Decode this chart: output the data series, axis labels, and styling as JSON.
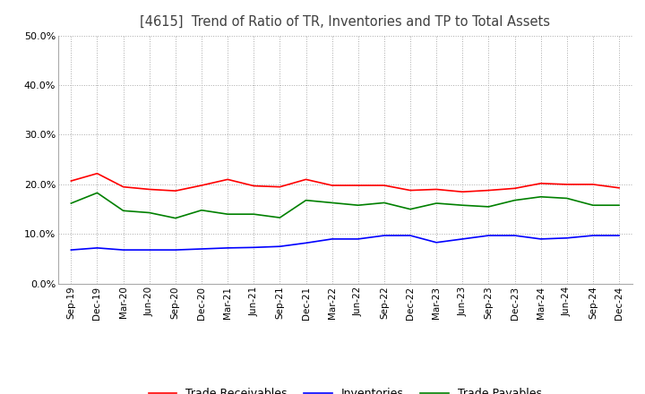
{
  "title": "[4615]  Trend of Ratio of TR, Inventories and TP to Total Assets",
  "x_labels": [
    "Sep-19",
    "Dec-19",
    "Mar-20",
    "Jun-20",
    "Sep-20",
    "Dec-20",
    "Mar-21",
    "Jun-21",
    "Sep-21",
    "Dec-21",
    "Mar-22",
    "Jun-22",
    "Sep-22",
    "Dec-22",
    "Mar-23",
    "Jun-23",
    "Sep-23",
    "Dec-23",
    "Mar-24",
    "Jun-24",
    "Sep-24",
    "Dec-24"
  ],
  "trade_receivables": [
    0.207,
    0.222,
    0.195,
    0.19,
    0.187,
    0.198,
    0.21,
    0.197,
    0.195,
    0.21,
    0.198,
    0.198,
    0.198,
    0.188,
    0.19,
    0.185,
    0.188,
    0.192,
    0.202,
    0.2,
    0.2,
    0.193
  ],
  "inventories": [
    0.068,
    0.072,
    0.068,
    0.068,
    0.068,
    0.07,
    0.072,
    0.073,
    0.075,
    0.082,
    0.09,
    0.09,
    0.097,
    0.097,
    0.083,
    0.09,
    0.097,
    0.097,
    0.09,
    0.092,
    0.097,
    0.097
  ],
  "trade_payables": [
    0.162,
    0.183,
    0.147,
    0.143,
    0.132,
    0.148,
    0.14,
    0.14,
    0.133,
    0.168,
    0.163,
    0.158,
    0.163,
    0.15,
    0.162,
    0.158,
    0.155,
    0.168,
    0.175,
    0.172,
    0.158,
    0.158
  ],
  "tr_color": "#FF0000",
  "inv_color": "#0000FF",
  "tp_color": "#008000",
  "ylim": [
    0.0,
    0.5
  ],
  "yticks": [
    0.0,
    0.1,
    0.2,
    0.3,
    0.4,
    0.5
  ],
  "background_color": "#FFFFFF",
  "grid_color": "#AAAAAA",
  "title_color": "#404040",
  "legend_labels": [
    "Trade Receivables",
    "Inventories",
    "Trade Payables"
  ]
}
